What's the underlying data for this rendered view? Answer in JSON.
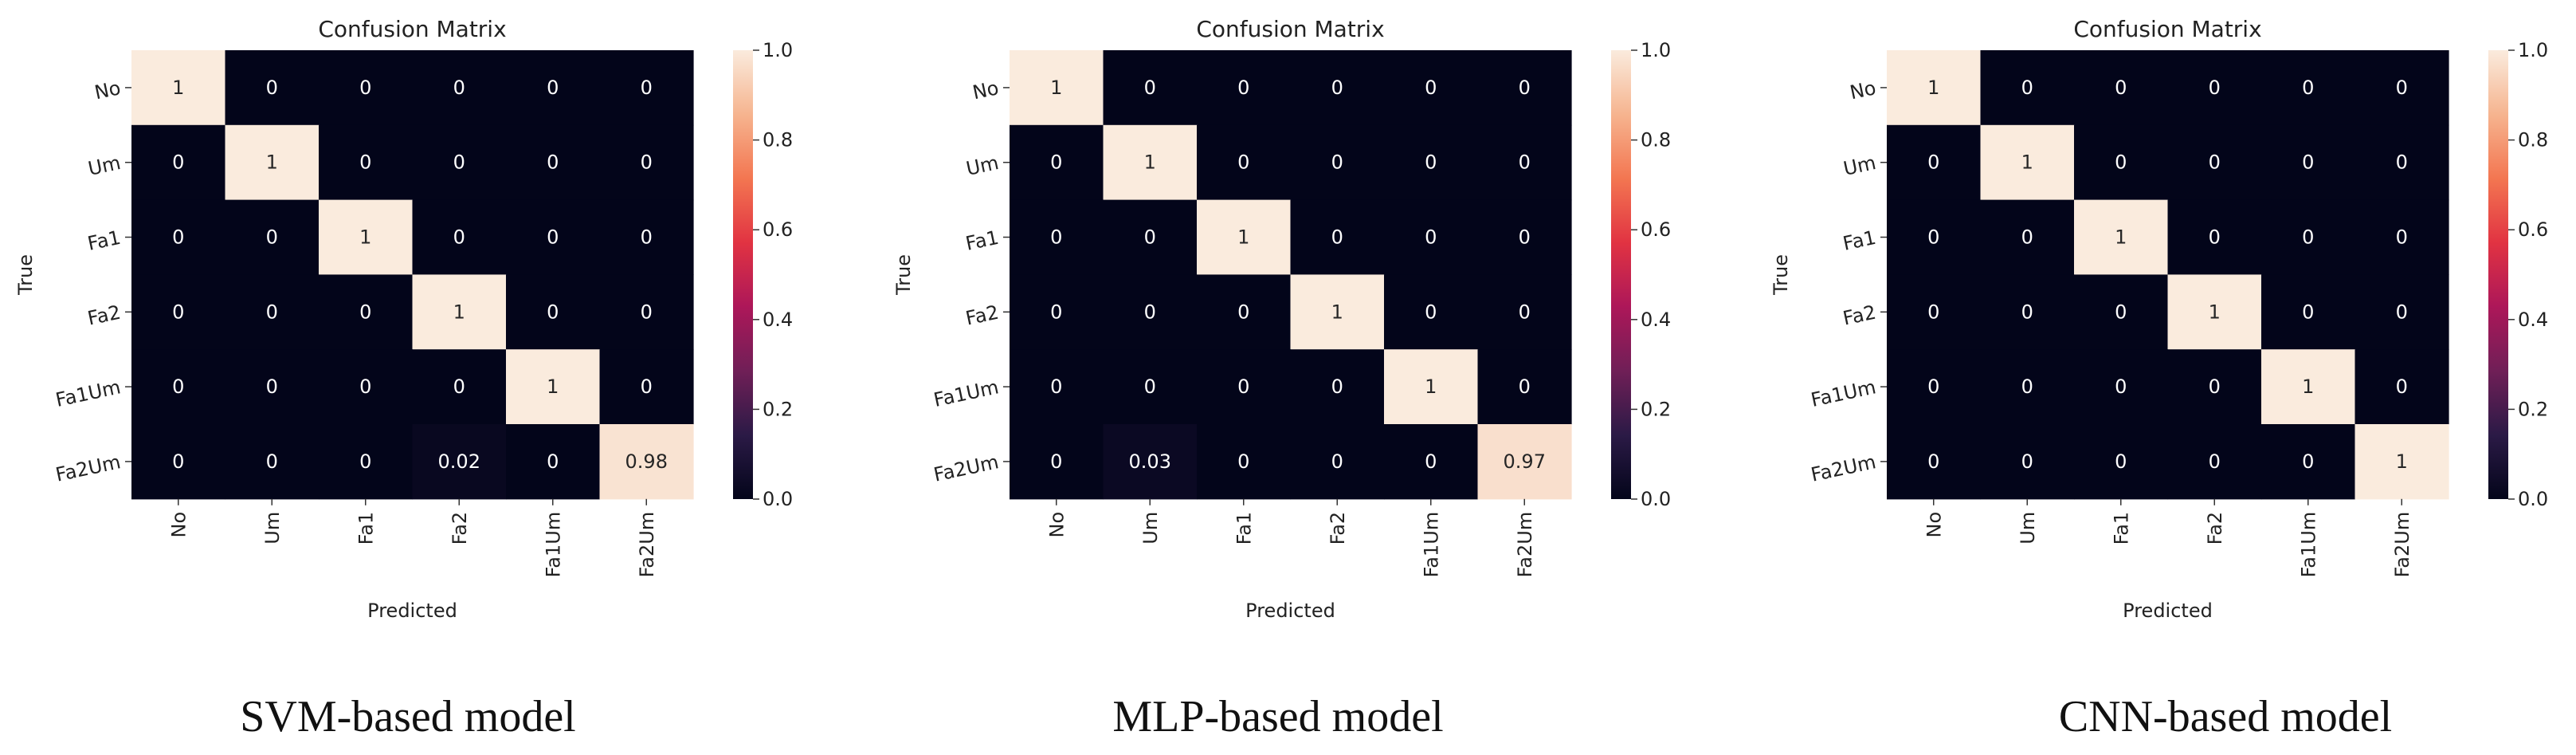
{
  "chart_data": [
    {
      "type": "heatmap",
      "title": "Confusion Matrix",
      "xlabel": "Predicted",
      "ylabel": "True",
      "caption": "SVM-based model",
      "categories": [
        "No",
        "Um",
        "Fa1",
        "Fa2",
        "Fa1Um",
        "Fa2Um"
      ],
      "matrix": [
        [
          "1",
          "0",
          "0",
          "0",
          "0",
          "0"
        ],
        [
          "0",
          "1",
          "0",
          "0",
          "0",
          "0"
        ],
        [
          "0",
          "0",
          "1",
          "0",
          "0",
          "0"
        ],
        [
          "0",
          "0",
          "0",
          "1",
          "0",
          "0"
        ],
        [
          "0",
          "0",
          "0",
          "0",
          "1",
          "0"
        ],
        [
          "0",
          "0",
          "0",
          "0.02",
          "0",
          "0.98"
        ]
      ],
      "colorbar": {
        "range": [
          0,
          1
        ],
        "ticks": [
          "0.0",
          "0.2",
          "0.4",
          "0.6",
          "0.8",
          "1.0"
        ]
      }
    },
    {
      "type": "heatmap",
      "title": "Confusion Matrix",
      "xlabel": "Predicted",
      "ylabel": "True",
      "caption": "MLP-based model",
      "categories": [
        "No",
        "Um",
        "Fa1",
        "Fa2",
        "Fa1Um",
        "Fa2Um"
      ],
      "matrix": [
        [
          "1",
          "0",
          "0",
          "0",
          "0",
          "0"
        ],
        [
          "0",
          "1",
          "0",
          "0",
          "0",
          "0"
        ],
        [
          "0",
          "0",
          "1",
          "0",
          "0",
          "0"
        ],
        [
          "0",
          "0",
          "0",
          "1",
          "0",
          "0"
        ],
        [
          "0",
          "0",
          "0",
          "0",
          "1",
          "0"
        ],
        [
          "0",
          "0.03",
          "0",
          "0",
          "0",
          "0.97"
        ]
      ],
      "colorbar": {
        "range": [
          0,
          1
        ],
        "ticks": [
          "0.0",
          "0.2",
          "0.4",
          "0.6",
          "0.8",
          "1.0"
        ]
      }
    },
    {
      "type": "heatmap",
      "title": "Confusion Matrix",
      "xlabel": "Predicted",
      "ylabel": "True",
      "caption": "CNN-based model",
      "categories": [
        "No",
        "Um",
        "Fa1",
        "Fa2",
        "Fa1Um",
        "Fa2Um"
      ],
      "matrix": [
        [
          "1",
          "0",
          "0",
          "0",
          "0",
          "0"
        ],
        [
          "0",
          "1",
          "0",
          "0",
          "0",
          "0"
        ],
        [
          "0",
          "0",
          "1",
          "0",
          "0",
          "0"
        ],
        [
          "0",
          "0",
          "0",
          "1",
          "0",
          "0"
        ],
        [
          "0",
          "0",
          "0",
          "0",
          "1",
          "0"
        ],
        [
          "0",
          "0",
          "0",
          "0",
          "0",
          "1"
        ]
      ],
      "colorbar": {
        "range": [
          0,
          1
        ],
        "ticks": [
          "0.0",
          "0.2",
          "0.4",
          "0.6",
          "0.8",
          "1.0"
        ]
      }
    }
  ],
  "colormap": {
    "name": "rocket",
    "stops": [
      "#03051a",
      "#2b1a46",
      "#701f57",
      "#ad1759",
      "#e13342",
      "#f37651",
      "#f6b48f",
      "#faebdd"
    ]
  }
}
